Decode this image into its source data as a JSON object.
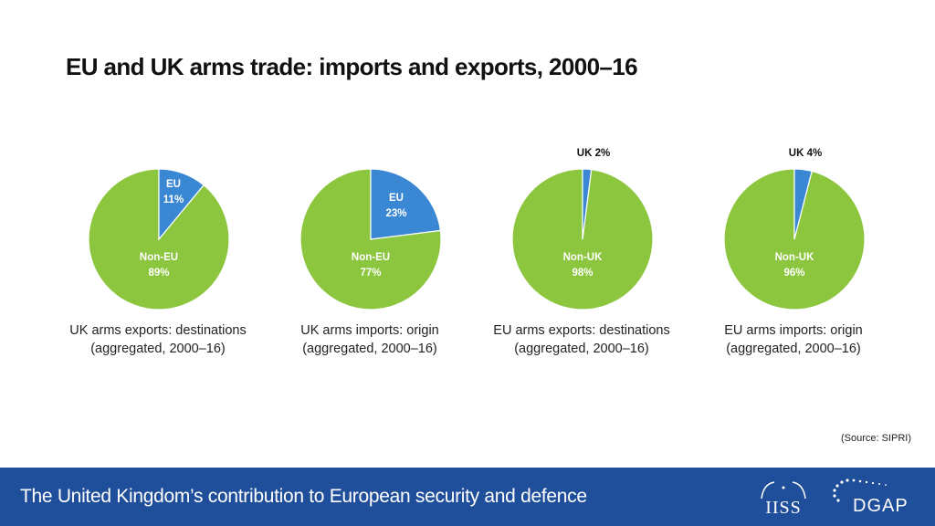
{
  "title": "EU and UK arms trade: imports and exports, 2000–16",
  "colors": {
    "main": "#8cc63f",
    "highlight": "#3a87d4",
    "stroke": "#ffffff",
    "footer": "#1f4e9a"
  },
  "chart_data": [
    {
      "type": "pie",
      "slices": [
        {
          "label": "EU",
          "value": 11,
          "value_label": "11%"
        },
        {
          "label": "Non-EU",
          "value": 89,
          "value_label": "89%"
        }
      ],
      "highlight_label_position": "inside",
      "caption": [
        "UK arms exports: destinations",
        "(aggregated, 2000–16)"
      ]
    },
    {
      "type": "pie",
      "slices": [
        {
          "label": "EU",
          "value": 23,
          "value_label": "23%"
        },
        {
          "label": "Non-EU",
          "value": 77,
          "value_label": "77%"
        }
      ],
      "highlight_label_position": "inside",
      "caption": [
        "UK arms imports: origin",
        "(aggregated, 2000–16)"
      ]
    },
    {
      "type": "pie",
      "slices": [
        {
          "label": "UK",
          "value": 2,
          "value_label": "2%"
        },
        {
          "label": "Non-UK",
          "value": 98,
          "value_label": "98%"
        }
      ],
      "highlight_label_position": "outside",
      "caption": [
        "EU arms exports: destinations",
        "(aggregated, 2000–16)"
      ]
    },
    {
      "type": "pie",
      "slices": [
        {
          "label": "UK",
          "value": 4,
          "value_label": "4%"
        },
        {
          "label": "Non-UK",
          "value": 96,
          "value_label": "96%"
        }
      ],
      "highlight_label_position": "outside",
      "caption": [
        "EU arms imports: origin",
        "(aggregated, 2000–16)"
      ]
    }
  ],
  "source": "(Source:  SIPRI)",
  "footer": {
    "text": "The United Kingdom’s contribution to European security and defence",
    "logos": [
      "IISS",
      "DGAP"
    ]
  }
}
